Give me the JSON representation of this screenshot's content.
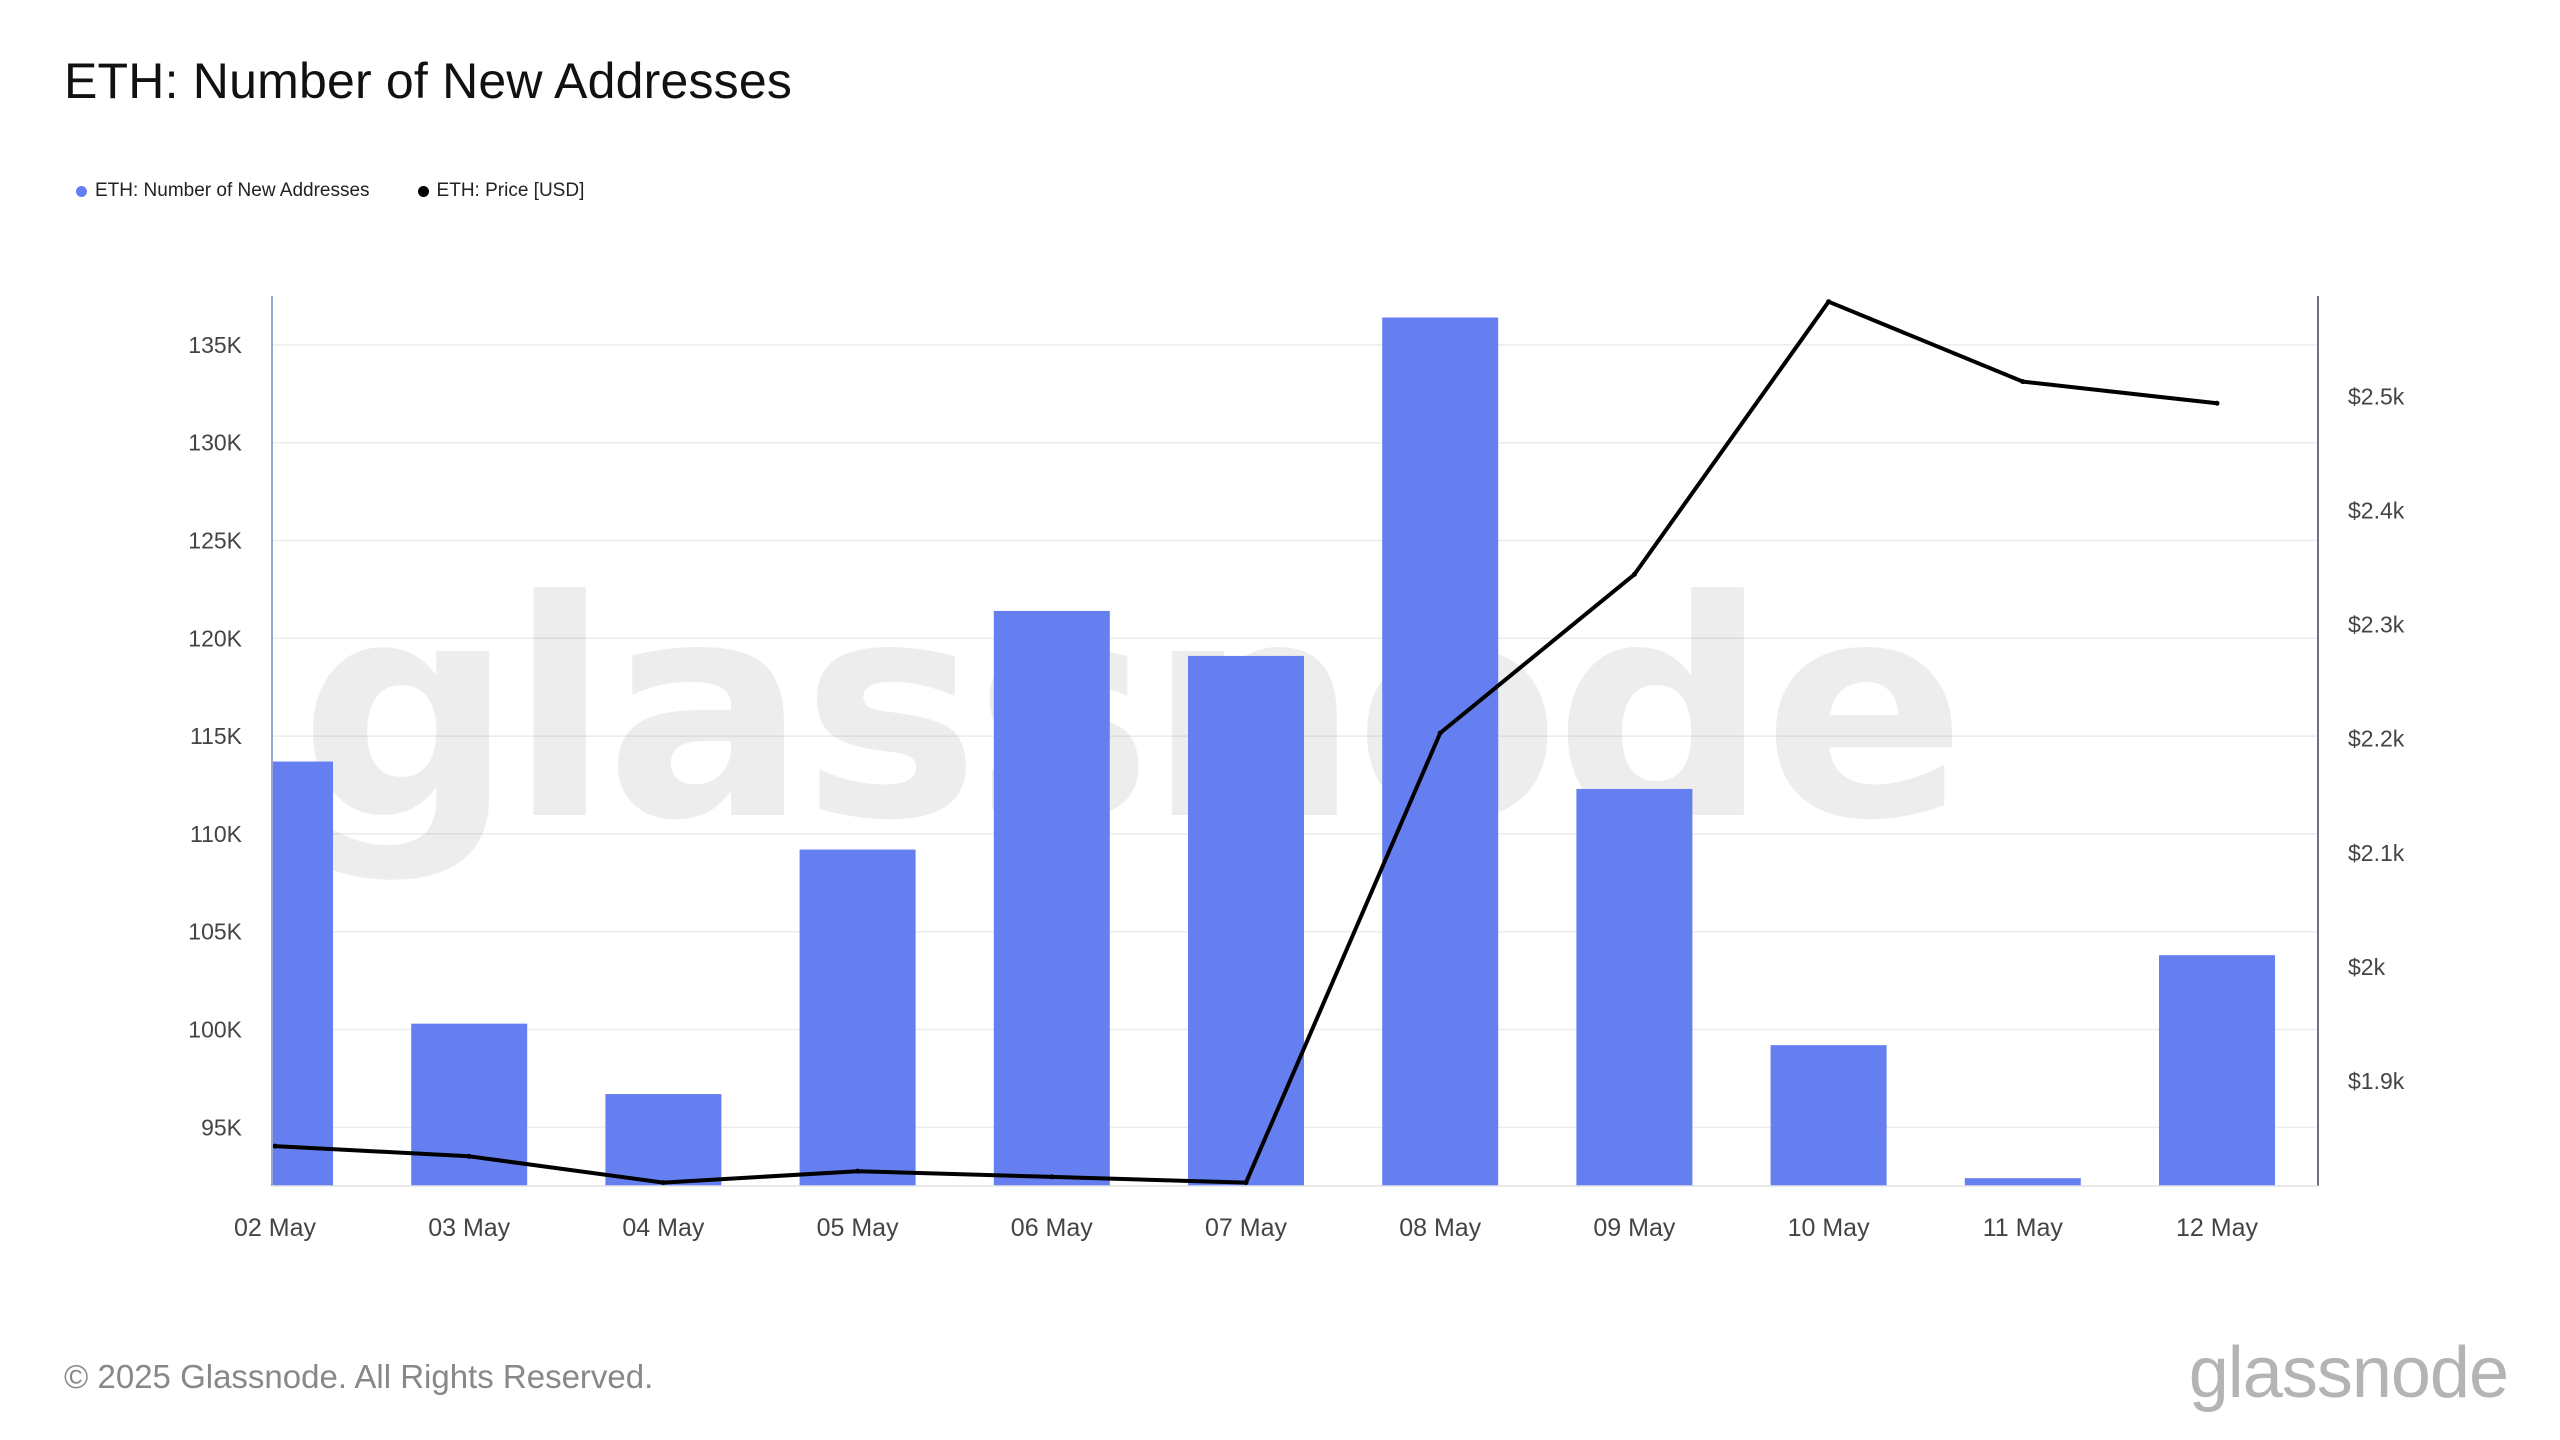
{
  "header": {
    "title": "ETH: Number of New Addresses"
  },
  "legend": {
    "items": [
      {
        "label": "ETH: Number of New Addresses",
        "color": "#657ff0"
      },
      {
        "label": "ETH: Price [USD]",
        "color": "#000000"
      }
    ]
  },
  "footer": {
    "copyright": "© 2025 Glassnode. All Rights Reserved.",
    "brand": "glassnode"
  },
  "watermark": {
    "text": "glassnode"
  },
  "colors": {
    "bar": "#657ff0",
    "price_line": "#000000",
    "grid": "#ececec",
    "axis": "#9aa7c8"
  },
  "chart_data": {
    "type": "bar",
    "title": "ETH: Number of New Addresses",
    "categories": [
      "02 May",
      "03 May",
      "04 May",
      "05 May",
      "06 May",
      "07 May",
      "08 May",
      "09 May",
      "10 May",
      "11 May",
      "12 May"
    ],
    "series": [
      {
        "name": "ETH: Number of New Addresses",
        "type": "bar",
        "axis": "left",
        "values": [
          113700,
          100300,
          96700,
          109200,
          121400,
          119100,
          136400,
          112300,
          99200,
          92400,
          103800
        ]
      },
      {
        "name": "ETH: Price [USD]",
        "type": "line",
        "axis": "right",
        "values": [
          1843,
          1834,
          1811,
          1821,
          1816,
          1811,
          2205,
          2344,
          2583,
          2513,
          2494
        ]
      }
    ],
    "y_left": {
      "min": 92000,
      "max": 137500,
      "ticks": [
        95000,
        100000,
        105000,
        110000,
        115000,
        120000,
        125000,
        130000,
        135000
      ],
      "tick_labels": [
        "95K",
        "100K",
        "105K",
        "110K",
        "115K",
        "120K",
        "125K",
        "130K",
        "135K"
      ]
    },
    "y_right": {
      "min": 1808,
      "max": 2588,
      "ticks": [
        1900,
        2000,
        2100,
        2200,
        2300,
        2400,
        2500
      ],
      "tick_labels": [
        "$1.9k",
        "$2k",
        "$2.1k",
        "$2.2k",
        "$2.3k",
        "$2.4k",
        "$2.5k"
      ]
    },
    "grid": true,
    "legend_position": "top-left"
  }
}
